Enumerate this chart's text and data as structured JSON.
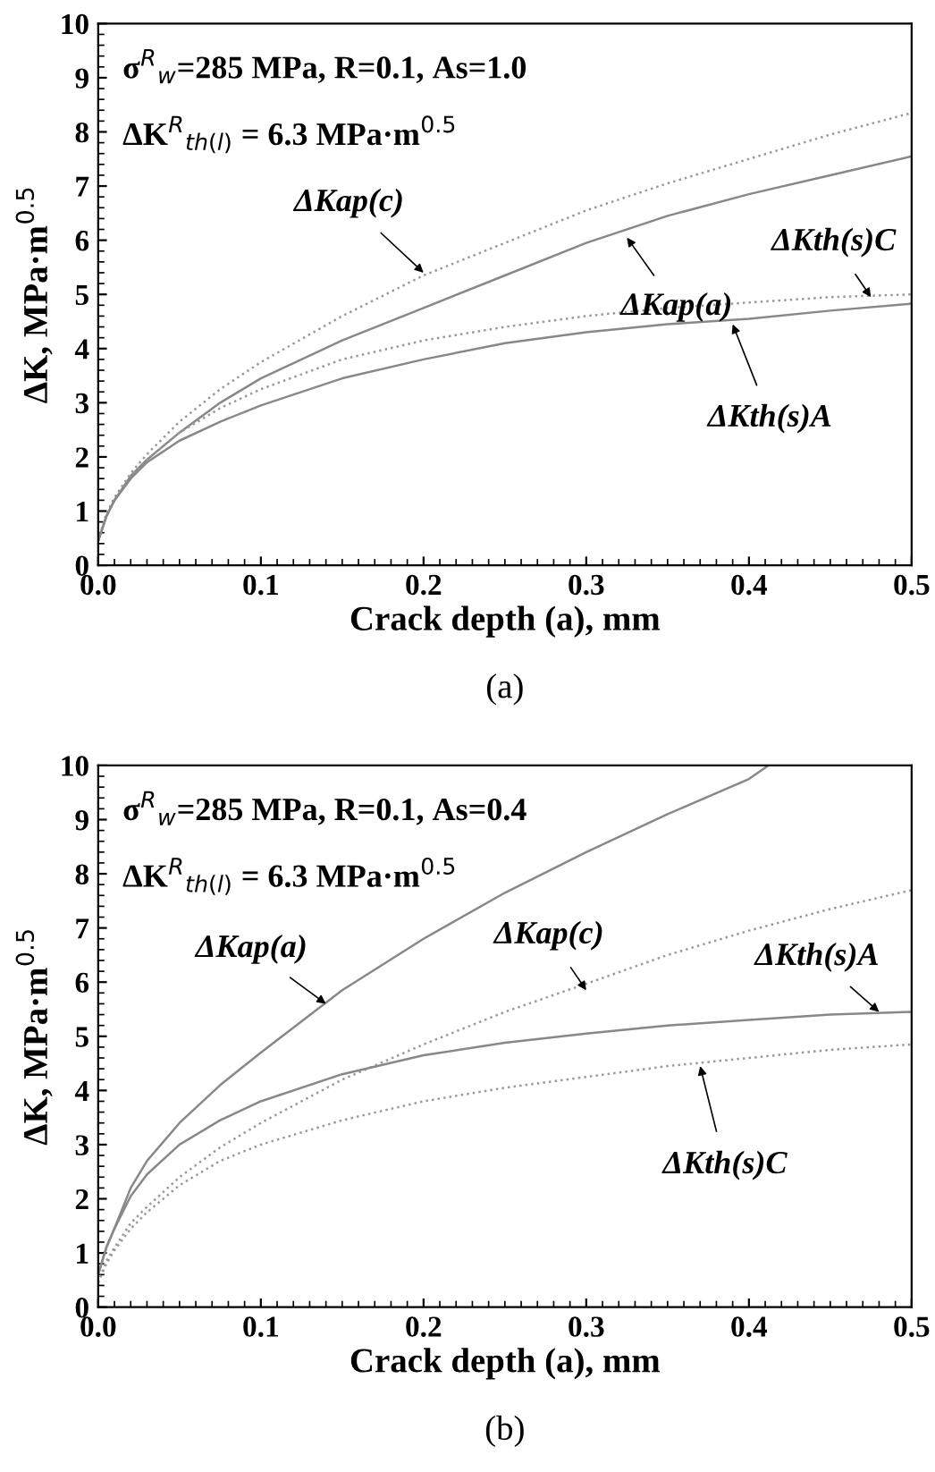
{
  "chart_data": [
    {
      "type": "line",
      "xlabel": "Crack depth (a), mm",
      "ylabel": "ΔK, MPa·m$^{0.5}$",
      "xlim": [
        0.0,
        0.5
      ],
      "ylim": [
        0,
        10
      ],
      "xticks": [
        {
          "value": 0.0,
          "label": "0.0"
        },
        0.1,
        0.2,
        0.3,
        0.4,
        0.5
      ],
      "yticks": [
        0,
        1,
        2,
        3,
        4,
        5,
        6,
        7,
        8,
        9,
        10
      ],
      "grid": false,
      "legend": false,
      "marker": "none",
      "x": [
        0,
        0.005,
        0.01,
        0.02,
        0.03,
        0.05,
        0.075,
        0.1,
        0.15,
        0.2,
        0.25,
        0.3,
        0.35,
        0.4,
        0.45,
        0.5
      ],
      "series": [
        {
          "color": "#9a9a9a",
          "line_style": "dotted",
          "values": [
            0.45,
            0.95,
            1.25,
            1.7,
            2.05,
            2.65,
            3.25,
            3.75,
            4.6,
            5.35,
            5.95,
            6.55,
            7.05,
            7.5,
            7.95,
            8.35
          ]
        },
        {
          "color": "#888888",
          "line_style": "solid",
          "values": [
            0.45,
            0.9,
            1.2,
            1.65,
            1.95,
            2.45,
            3.0,
            3.45,
            4.15,
            4.75,
            5.35,
            5.95,
            6.45,
            6.85,
            7.2,
            7.55
          ]
        },
        {
          "color": "#9a9a9a",
          "line_style": "dotted",
          "values": [
            0.45,
            0.9,
            1.2,
            1.65,
            1.95,
            2.45,
            2.9,
            3.25,
            3.8,
            4.15,
            4.4,
            4.6,
            4.75,
            4.85,
            4.95,
            5.0
          ]
        },
        {
          "color": "#888888",
          "line_style": "solid",
          "values": [
            0.45,
            0.9,
            1.2,
            1.6,
            1.9,
            2.3,
            2.65,
            2.95,
            3.45,
            3.8,
            4.1,
            4.3,
            4.45,
            4.55,
            4.7,
            4.83
          ]
        }
      ],
      "annotations": [
        "σ$^{R}$$_{w}$=285 MPa, R=0.1, As=1.0",
        "ΔK$^{R}$$_{th(l)}$ = 6.3 MPa·m$^{0.5}$",
        {
          "text": "ΔKap(c)",
          "x": 0.2,
          "y": 5.4
        },
        {
          "text": "ΔKap(a)",
          "x": 0.325,
          "y": 6.05
        },
        {
          "text": "ΔKth(s)C",
          "x": 0.475,
          "y": 4.95
        },
        {
          "text": "ΔKth(s)A",
          "x": 0.39,
          "y": 4.45
        },
        "(a)"
      ]
    },
    {
      "type": "line",
      "xlabel": "Crack depth (a), mm",
      "ylabel": "ΔK, MPa·m$^{0.5}$",
      "xlim": [
        0.0,
        0.5
      ],
      "ylim": [
        0,
        10
      ],
      "xticks": [
        {
          "value": 0.0,
          "label": "0.0"
        },
        0.1,
        0.2,
        0.3,
        0.4,
        0.5
      ],
      "yticks": [
        0,
        1,
        2,
        3,
        4,
        5,
        6,
        7,
        8,
        9,
        10
      ],
      "grid": false,
      "legend": false,
      "marker": "none",
      "x": [
        0,
        0.005,
        0.01,
        0.02,
        0.03,
        0.05,
        0.075,
        0.1,
        0.15,
        0.2,
        0.25,
        0.3,
        0.35,
        0.4,
        0.45,
        0.5
      ],
      "series": [
        {
          "color": "#888888",
          "line_style": "solid",
          "x": [
            0,
            0.005,
            0.01,
            0.02,
            0.03,
            0.05,
            0.075,
            0.1,
            0.15,
            0.2,
            0.25,
            0.3,
            0.35,
            0.4,
            0.412
          ],
          "values": [
            0.6,
            1.1,
            1.45,
            2.2,
            2.7,
            3.4,
            4.1,
            4.7,
            5.85,
            6.8,
            7.65,
            8.4,
            9.1,
            9.75,
            10.0
          ]
        },
        {
          "color": "#9a9a9a",
          "line_style": "dotted",
          "values": [
            0.45,
            0.85,
            1.1,
            1.55,
            1.85,
            2.4,
            2.95,
            3.4,
            4.2,
            4.85,
            5.45,
            5.97,
            6.5,
            6.95,
            7.35,
            7.7
          ]
        },
        {
          "color": "#888888",
          "line_style": "solid",
          "values": [
            0.6,
            1.1,
            1.45,
            2.05,
            2.45,
            3.0,
            3.45,
            3.8,
            4.3,
            4.65,
            4.88,
            5.05,
            5.2,
            5.3,
            5.4,
            5.45
          ]
        },
        {
          "color": "#9a9a9a",
          "line_style": "dotted",
          "values": [
            0.45,
            0.8,
            1.05,
            1.45,
            1.75,
            2.25,
            2.7,
            3.0,
            3.45,
            3.8,
            4.05,
            4.25,
            4.45,
            4.6,
            4.75,
            4.85
          ]
        }
      ],
      "annotations": [
        "σ$^{R}$$_{w}$=285 MPa, R=0.1, As=0.4",
        "ΔK$^{R}$$_{th(l)}$ = 6.3 MPa·m$^{0.5}$",
        {
          "text": "ΔKap(a)",
          "x": 0.14,
          "y": 5.6
        },
        {
          "text": "ΔKap(c)",
          "x": 0.3,
          "y": 5.85
        },
        {
          "text": "ΔKth(s)A",
          "x": 0.48,
          "y": 5.45
        },
        {
          "text": "ΔKth(s)C",
          "x": 0.37,
          "y": 4.45
        },
        "(b)"
      ]
    }
  ]
}
